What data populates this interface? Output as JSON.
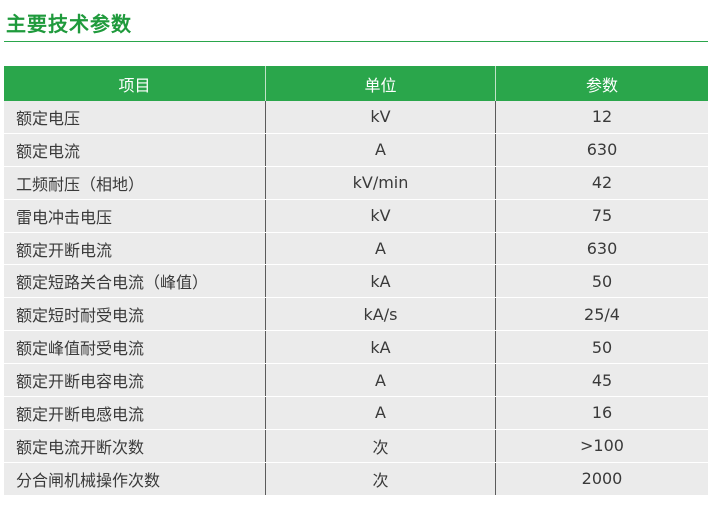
{
  "title": "主要技术参数",
  "table": {
    "headers": [
      "项目",
      "单位",
      "参数"
    ],
    "rows": [
      {
        "item": "额定电压",
        "unit": "kV",
        "value": "12"
      },
      {
        "item": "额定电流",
        "unit": "A",
        "value": "630"
      },
      {
        "item": "工频耐压（相地）",
        "unit": "kV/min",
        "value": "42"
      },
      {
        "item": "雷电冲击电压",
        "unit": "kV",
        "value": "75"
      },
      {
        "item": "额定开断电流",
        "unit": "A",
        "value": "630"
      },
      {
        "item": "额定短路关合电流（峰值）",
        "unit": "kA",
        "value": "50"
      },
      {
        "item": "额定短时耐受电流",
        "unit": "kA/s",
        "value": "25/4"
      },
      {
        "item": "额定峰值耐受电流",
        "unit": "kA",
        "value": "50"
      },
      {
        "item": "额定开断电容电流",
        "unit": "A",
        "value": "45"
      },
      {
        "item": "额定开断电感电流",
        "unit": "A",
        "value": "16"
      },
      {
        "item": "额定电流开断次数",
        "unit": "次",
        "value": ">100"
      },
      {
        "item": "分合闸机械操作次数",
        "unit": "次",
        "value": "2000"
      }
    ]
  },
  "colors": {
    "accent": "#2aa64b",
    "title": "#1f9a3c",
    "row_bg": "#ebebeb"
  }
}
